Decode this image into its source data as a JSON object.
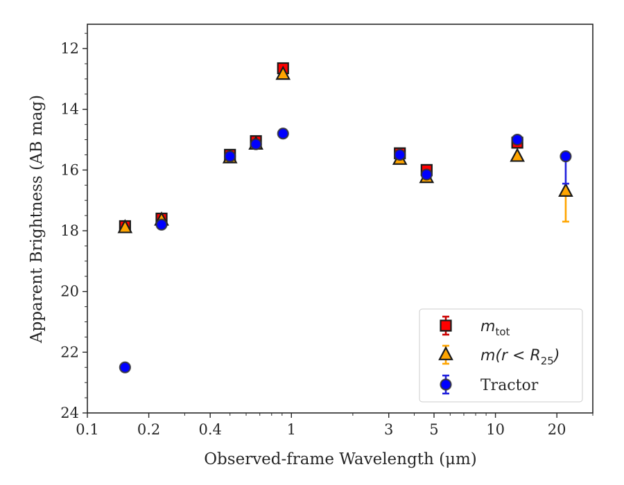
{
  "chart_data": {
    "type": "scatter",
    "title": "",
    "xlabel": "Observed-frame Wavelength (μm)",
    "ylabel": "Apparent Brightness (AB mag)",
    "xscale": "log",
    "xlim": [
      0.1,
      30
    ],
    "ylim": [
      24,
      11.2
    ],
    "y_inverted": true,
    "x_ticks": [
      0.1,
      0.2,
      0.4,
      1,
      3,
      5,
      10,
      20
    ],
    "x_tick_labels": [
      "0.1",
      "0.2",
      "0.4",
      "1",
      "3",
      "5",
      "10",
      "20"
    ],
    "y_ticks": [
      12,
      14,
      16,
      18,
      20,
      22,
      24
    ],
    "y_tick_labels": [
      "12",
      "14",
      "16",
      "18",
      "20",
      "22",
      "24"
    ],
    "grid": false,
    "legend_position": "lower-right",
    "series": [
      {
        "name": "m_tot",
        "legend_base": "m",
        "legend_sub": "tot",
        "marker": "square",
        "color": "#ff0000",
        "edge_color": "#1a1a1a",
        "points": [
          {
            "x": 0.153,
            "y": 17.85,
            "err": 0.05
          },
          {
            "x": 0.231,
            "y": 17.6,
            "err": 0.06
          },
          {
            "x": 0.5,
            "y": 15.5,
            "err": 0.05
          },
          {
            "x": 0.67,
            "y": 15.05,
            "err": 0.05
          },
          {
            "x": 0.91,
            "y": 12.65,
            "err": 0.05
          },
          {
            "x": 3.4,
            "y": 15.45,
            "err": 0.05
          },
          {
            "x": 4.6,
            "y": 16.0,
            "err": 0.05
          },
          {
            "x": 12.8,
            "y": 15.1,
            "err": 0.05
          }
        ]
      },
      {
        "name": "m(r < R25)",
        "legend_base": "m(r < R",
        "legend_sub": "25",
        "legend_close": ")",
        "marker": "triangle",
        "color": "#ffa500",
        "edge_color": "#1a1a1a",
        "points": [
          {
            "x": 0.153,
            "y": 17.9,
            "err": 0.05
          },
          {
            "x": 0.231,
            "y": 17.65,
            "err": 0.05
          },
          {
            "x": 0.5,
            "y": 15.6,
            "err": 0.05
          },
          {
            "x": 0.67,
            "y": 15.15,
            "err": 0.05
          },
          {
            "x": 0.91,
            "y": 12.85,
            "err": 0.05
          },
          {
            "x": 3.4,
            "y": 15.65,
            "err": 0.05
          },
          {
            "x": 4.6,
            "y": 16.25,
            "err": 0.05
          },
          {
            "x": 12.8,
            "y": 15.55,
            "err": 0.05
          },
          {
            "x": 22.1,
            "y": 16.7,
            "err_low": 0.05,
            "err_high": 1.0
          }
        ]
      },
      {
        "name": "Tractor",
        "marker": "circle",
        "color": "#0000ff",
        "edge_color": "#333333",
        "points": [
          {
            "x": 0.153,
            "y": 22.5,
            "err": 0.05
          },
          {
            "x": 0.231,
            "y": 17.8,
            "err": 0.05
          },
          {
            "x": 0.5,
            "y": 15.55,
            "err": 0.05
          },
          {
            "x": 0.67,
            "y": 15.15,
            "err": 0.05
          },
          {
            "x": 0.91,
            "y": 14.8,
            "err": 0.05
          },
          {
            "x": 3.4,
            "y": 15.5,
            "err": 0.05
          },
          {
            "x": 4.6,
            "y": 16.15,
            "err": 0.05
          },
          {
            "x": 12.8,
            "y": 15.0,
            "err": 0.05
          },
          {
            "x": 22.1,
            "y": 15.55,
            "err_low": 0.05,
            "err_high": 0.9
          }
        ]
      }
    ]
  }
}
